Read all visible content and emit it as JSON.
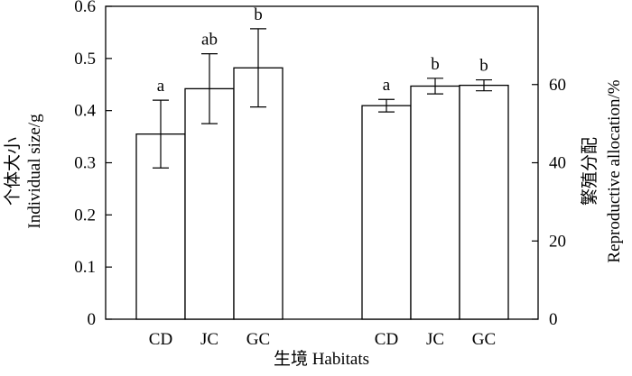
{
  "chart_data": {
    "type": "bar",
    "xlabel": "生境 Habitats",
    "left_panel": {
      "ylabel_cn": "个体大小",
      "ylabel_en": "Individual size/g",
      "ylim": [
        0,
        0.6
      ],
      "yticks": [
        "0",
        "0.1",
        "0.2",
        "0.3",
        "0.4",
        "0.5",
        "0.6"
      ],
      "categories": [
        "CD",
        "JC",
        "GC"
      ],
      "values": [
        0.355,
        0.442,
        0.482
      ],
      "errors": [
        0.065,
        0.067,
        0.075
      ],
      "letters": [
        "a",
        "ab",
        "b"
      ]
    },
    "right_panel": {
      "ylabel_cn": "繁殖分配",
      "ylabel_en": "Reproductive allocation/%",
      "ylim": [
        0,
        80
      ],
      "yticks": [
        "0",
        "20",
        "40",
        "60"
      ],
      "categories": [
        "CD",
        "JC",
        "GC"
      ],
      "values": [
        54.6,
        59.6,
        59.8
      ],
      "errors": [
        1.6,
        2.0,
        1.4
      ],
      "letters": [
        "a",
        "b",
        "b"
      ]
    },
    "grid": false,
    "legend": "none"
  }
}
